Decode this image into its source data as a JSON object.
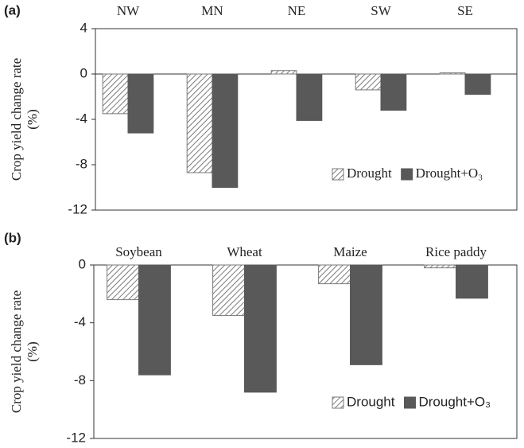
{
  "charts": [
    {
      "chart_data": {
        "type": "bar",
        "panel_label": "(a)",
        "ylabel_lines": [
          "Crop yield change rate",
          "(%)"
        ],
        "categories": [
          "NW",
          "MN",
          "NE",
          "SW",
          "SE"
        ],
        "series": [
          {
            "name": "Drought",
            "color": "#7a7a7a",
            "pattern": "hatch",
            "values": [
              -3.5,
              -8.7,
              0.3,
              -1.4,
              0.1
            ]
          },
          {
            "name": "Drought+O₃",
            "color": "#595959",
            "values": [
              -5.2,
              -10.0,
              -4.1,
              -3.2,
              -1.8
            ]
          }
        ],
        "ylim": [
          -12,
          4
        ],
        "yticks": [
          -12,
          -8,
          -4,
          0,
          4
        ],
        "legend": "lower right"
      }
    },
    {
      "chart_data": {
        "type": "bar",
        "panel_label": "(b)",
        "ylabel_lines": [
          "Crop yield change rate",
          "(%)"
        ],
        "categories": [
          "Soybean",
          "Wheat",
          "Maize",
          "Rice paddy"
        ],
        "series": [
          {
            "name": "Drought",
            "color": "#7a7a7a",
            "pattern": "hatch",
            "values": [
              -2.4,
              -3.5,
              -1.3,
              -0.2
            ]
          },
          {
            "name": "Drought+O₃",
            "color": "#595959",
            "values": [
              -7.6,
              -8.8,
              -6.9,
              -2.3
            ]
          }
        ],
        "ylim": [
          -12,
          0
        ],
        "yticks": [
          -12,
          -8,
          -4,
          0
        ],
        "legend": "lower right"
      }
    }
  ]
}
